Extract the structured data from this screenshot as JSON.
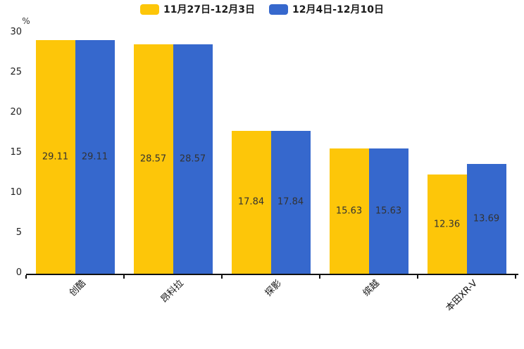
{
  "chart_data": {
    "type": "bar",
    "title": "",
    "categories": [
      "创酷",
      "昂科拉",
      "探影",
      "缤越",
      "本田XR-V"
    ],
    "series": [
      {
        "name": "11月27日-12月3日",
        "color": "#FDC609",
        "values": [
          29.11,
          28.57,
          17.84,
          15.63,
          12.36
        ]
      },
      {
        "name": "12月4日-12月10日",
        "color": "#3668CD",
        "values": [
          29.11,
          28.57,
          17.84,
          15.63,
          13.69
        ]
      }
    ],
    "xlabel": "",
    "ylabel": "%",
    "ylim": [
      0,
      30
    ],
    "yticks": [
      0,
      5,
      10,
      15,
      20,
      25,
      30
    ],
    "grid": false,
    "legend_position": "top",
    "data_labels": true,
    "data_label_color": "#333333",
    "axis_color": "#111111"
  }
}
